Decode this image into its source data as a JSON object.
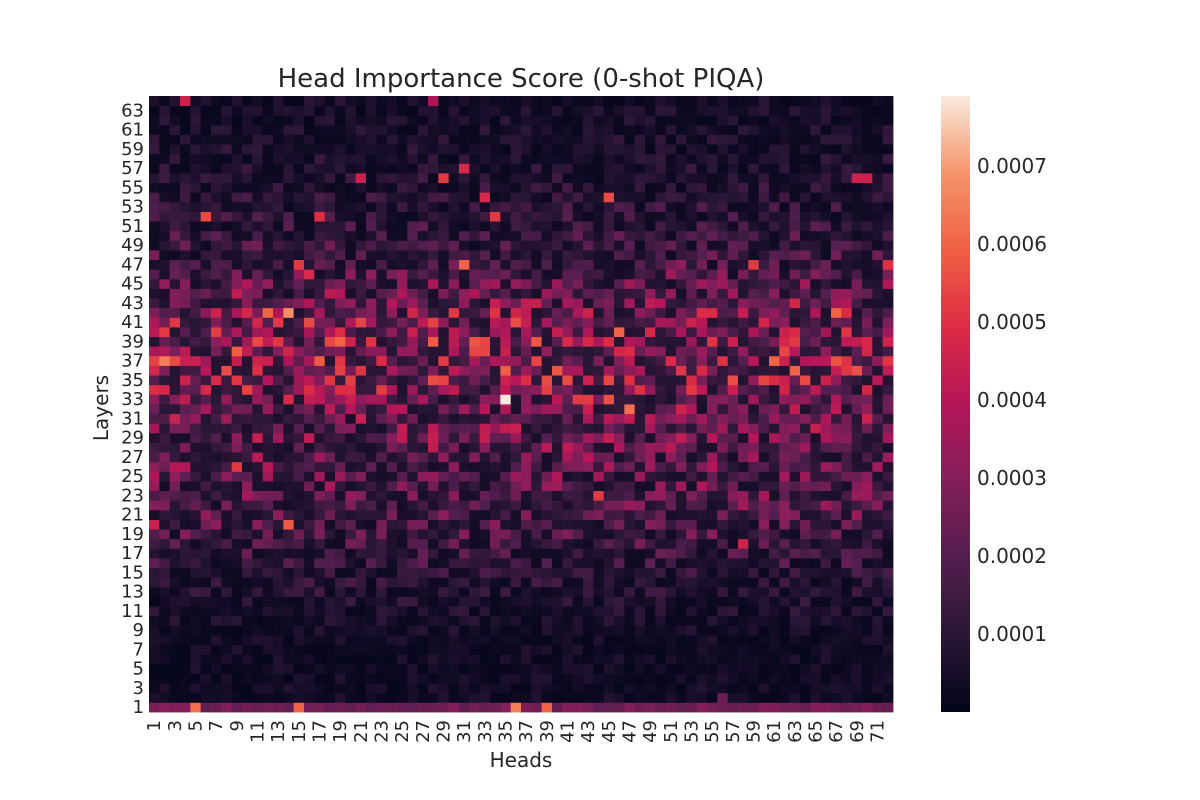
{
  "chart_data": {
    "type": "heatmap",
    "title": "Head Importance Score (0-shot PIQA)",
    "xlabel": "Heads",
    "ylabel": "Layers",
    "n_heads": 72,
    "n_layers": 64,
    "x_tick_labels": [
      "1",
      "3",
      "5",
      "7",
      "9",
      "11",
      "13",
      "15",
      "17",
      "19",
      "21",
      "23",
      "25",
      "27",
      "29",
      "31",
      "33",
      "35",
      "37",
      "39",
      "41",
      "43",
      "45",
      "47",
      "49",
      "51",
      "53",
      "55",
      "57",
      "59",
      "61",
      "63",
      "65",
      "67",
      "69",
      "71"
    ],
    "y_tick_labels": [
      "1",
      "3",
      "5",
      "7",
      "9",
      "11",
      "13",
      "15",
      "17",
      "19",
      "21",
      "23",
      "25",
      "27",
      "29",
      "31",
      "33",
      "35",
      "37",
      "39",
      "41",
      "43",
      "45",
      "47",
      "49",
      "51",
      "53",
      "55",
      "57",
      "59",
      "61",
      "63"
    ],
    "colormap": "rocket",
    "color_range": [
      0.0,
      0.00079
    ],
    "colorbar_ticks": [
      {
        "value": 0.0001,
        "label": "0.0001"
      },
      {
        "value": 0.0002,
        "label": "0.0002"
      },
      {
        "value": 0.0003,
        "label": "0.0003"
      },
      {
        "value": 0.0004,
        "label": "0.0004"
      },
      {
        "value": 0.0005,
        "label": "0.0005"
      },
      {
        "value": 0.0006,
        "label": "0.0006"
      },
      {
        "value": 0.0007,
        "label": "0.0007"
      }
    ],
    "layer_profile": [
      {
        "layer": 1,
        "mean": 0.00026
      },
      {
        "layer": 2,
        "mean": 4e-05
      },
      {
        "layer": 8,
        "mean": 4e-05
      },
      {
        "layer": 14,
        "mean": 9e-05
      },
      {
        "layer": 20,
        "mean": 0.00017
      },
      {
        "layer": 26,
        "mean": 0.00021
      },
      {
        "layer": 32,
        "mean": 0.00024
      },
      {
        "layer": 36,
        "mean": 0.00031
      },
      {
        "layer": 40,
        "mean": 0.00031
      },
      {
        "layer": 43,
        "mean": 0.00024
      },
      {
        "layer": 48,
        "mean": 0.00014
      },
      {
        "layer": 53,
        "mean": 0.0001
      },
      {
        "layer": 58,
        "mean": 7e-05
      },
      {
        "layer": 64,
        "mean": 5e-05
      }
    ],
    "highlights": [
      {
        "head": 35,
        "layer": 33,
        "value": 0.00079
      },
      {
        "head": 4,
        "layer": 64,
        "value": 0.00045
      },
      {
        "head": 28,
        "layer": 64,
        "value": 0.00038
      },
      {
        "head": 5,
        "layer": 1,
        "value": 0.00062
      },
      {
        "head": 15,
        "layer": 1,
        "value": 0.0006
      },
      {
        "head": 36,
        "layer": 1,
        "value": 0.00065
      },
      {
        "head": 39,
        "layer": 1,
        "value": 0.0006
      },
      {
        "head": 14,
        "layer": 42,
        "value": 0.00068
      },
      {
        "head": 2,
        "layer": 37,
        "value": 0.00065
      },
      {
        "head": 47,
        "layer": 32,
        "value": 0.00062
      },
      {
        "head": 14,
        "layer": 20,
        "value": 0.00058
      },
      {
        "head": 44,
        "layer": 23,
        "value": 0.00052
      },
      {
        "head": 42,
        "layer": 33,
        "value": 0.00052
      },
      {
        "head": 43,
        "layer": 33,
        "value": 0.00052
      },
      {
        "head": 45,
        "layer": 33,
        "value": 0.00056
      },
      {
        "head": 29,
        "layer": 56,
        "value": 0.00052
      },
      {
        "head": 31,
        "layer": 57,
        "value": 0.00048
      },
      {
        "head": 21,
        "layer": 56,
        "value": 0.00045
      },
      {
        "head": 70,
        "layer": 56,
        "value": 0.00045
      },
      {
        "head": 69,
        "layer": 56,
        "value": 0.00045
      },
      {
        "head": 61,
        "layer": 37,
        "value": 0.0006
      },
      {
        "head": 67,
        "layer": 42,
        "value": 0.0006
      },
      {
        "head": 38,
        "layer": 39,
        "value": 0.00058
      },
      {
        "head": 15,
        "layer": 47,
        "value": 0.00052
      },
      {
        "head": 16,
        "layer": 46,
        "value": 0.00048
      },
      {
        "head": 31,
        "layer": 47,
        "value": 0.0006
      },
      {
        "head": 17,
        "layer": 52,
        "value": 0.0005
      },
      {
        "head": 6,
        "layer": 52,
        "value": 0.00055
      },
      {
        "head": 45,
        "layer": 54,
        "value": 0.00055
      },
      {
        "head": 9,
        "layer": 26,
        "value": 0.00052
      },
      {
        "head": 58,
        "layer": 18,
        "value": 0.00045
      },
      {
        "head": 1,
        "layer": 20,
        "value": 0.00045
      },
      {
        "head": 12,
        "layer": 42,
        "value": 0.0006
      },
      {
        "head": 3,
        "layer": 37,
        "value": 0.00055
      },
      {
        "head": 72,
        "layer": 47,
        "value": 0.0005
      },
      {
        "head": 33,
        "layer": 54,
        "value": 0.00048
      },
      {
        "head": 34,
        "layer": 52,
        "value": 0.00052
      },
      {
        "head": 59,
        "layer": 47,
        "value": 0.00052
      },
      {
        "head": 63,
        "layer": 39,
        "value": 0.00052
      },
      {
        "head": 56,
        "layer": 2,
        "value": 0.00025
      }
    ]
  }
}
